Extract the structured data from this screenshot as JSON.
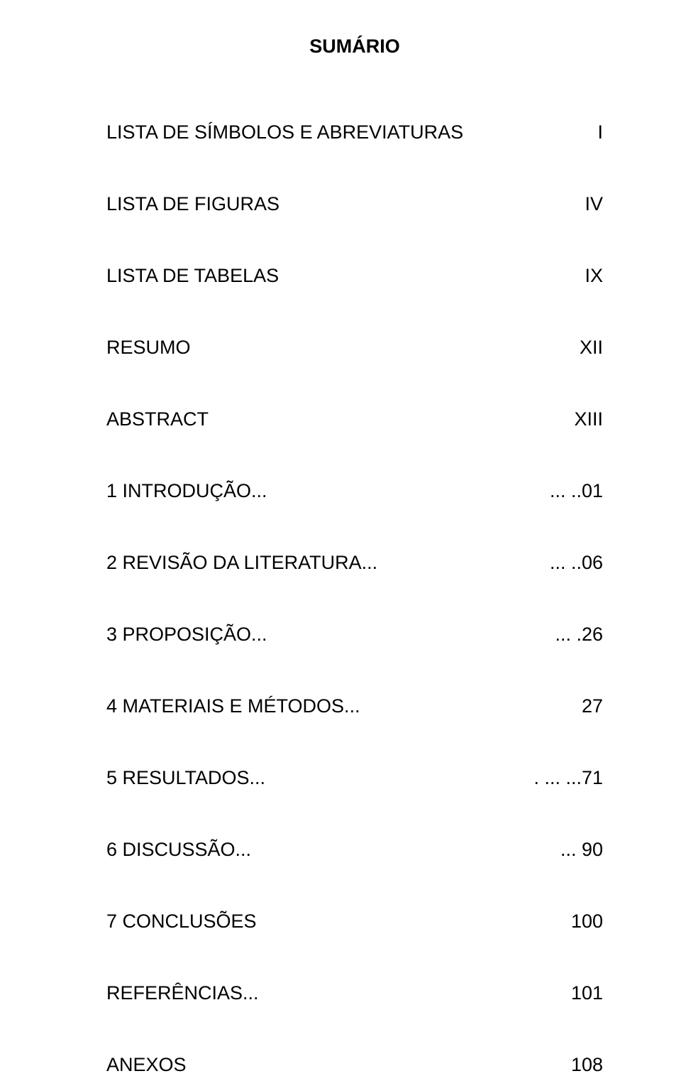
{
  "title": "SUMÁRIO",
  "entries": [
    {
      "label": "LISTA DE SÍMBOLOS E ABREVIATURAS",
      "page": "I"
    },
    {
      "label": "LISTA DE FIGURAS",
      "page": "IV"
    },
    {
      "label": "LISTA DE TABELAS",
      "page": "IX"
    },
    {
      "label": "RESUMO",
      "page": "XII"
    },
    {
      "label": "ABSTRACT",
      "page": "XIII"
    },
    {
      "label": "1 INTRODUÇÃO...",
      "page": "...  ..01"
    },
    {
      "label": "2 REVISÃO DA LITERATURA...",
      "page": "...  ..06"
    },
    {
      "label": "3 PROPOSIÇÃO...",
      "page": "...  .26"
    },
    {
      "label": "4 MATERIAIS E MÉTODOS...",
      "page": "27"
    },
    {
      "label": "5 RESULTADOS...",
      "page": ".  ...  ...71"
    },
    {
      "label": "6 DISCUSSÃO...",
      "page": "...   90"
    },
    {
      "label": "7 CONCLUSÕES",
      "page": "100"
    },
    {
      "label": "REFERÊNCIAS...",
      "page": "101"
    },
    {
      "label": "ANEXOS",
      "page": "108"
    }
  ],
  "colors": {
    "background": "#ffffff",
    "text": "#000000"
  },
  "typography": {
    "title_fontsize": 27,
    "entry_fontsize": 27,
    "font_family": "Arial"
  }
}
